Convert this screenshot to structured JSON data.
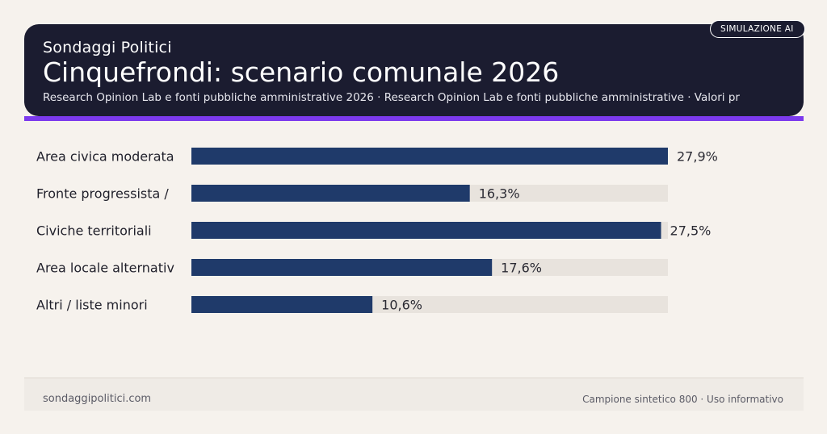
{
  "header": {
    "brand": "Sondaggi Politici",
    "title": "Cinquefrondi: scenario comunale 2026",
    "subtitle": "Research Opinion Lab e fonti pubbliche amministrative 2026 · Research Opinion Lab e fonti pubbliche amministrative · Valori pr",
    "badge": "SIMULAZIONE AI"
  },
  "colors": {
    "header_bg": "#1b1c30",
    "accent": "#7c3aed",
    "bar": "#1f3a6a",
    "track": "#e8e3dd",
    "background": "#f6f2ed"
  },
  "chart_data": {
    "type": "bar",
    "orientation": "horizontal",
    "categories": [
      "Area civica moderata",
      "Fronte progressista /",
      "Civiche territoriali",
      "Area locale alternativ",
      "Altri / liste minori"
    ],
    "values": [
      27.9,
      16.3,
      27.5,
      17.6,
      10.6
    ],
    "value_labels": [
      "27,9%",
      "16,3%",
      "27,5%",
      "17,6%",
      "10,6%"
    ],
    "xlim": [
      0,
      27.9
    ],
    "grid": false
  },
  "footer": {
    "left": "sondaggipolitici.com",
    "right": "Campione sintetico 800 · Uso informativo"
  }
}
